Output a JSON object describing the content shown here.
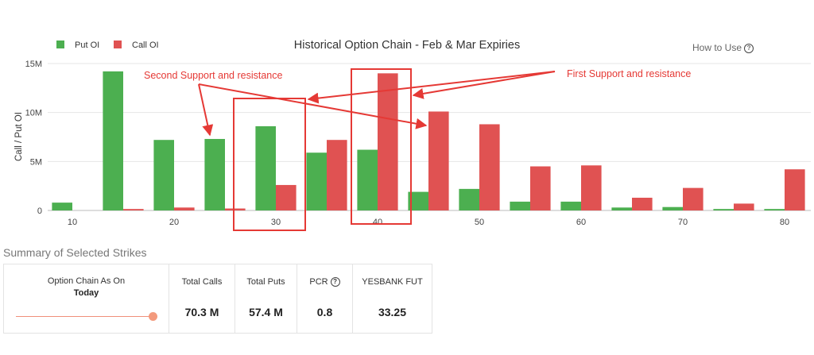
{
  "chart_data": {
    "type": "bar",
    "title": "Historical Option Chain - Feb & Mar Expiries",
    "ylabel": "Call / Put OI",
    "xlabel": "",
    "ylim": [
      0,
      15000000
    ],
    "yticks": [
      0,
      5000000,
      10000000,
      15000000
    ],
    "ytick_labels": [
      "0",
      "5M",
      "10M",
      "15M"
    ],
    "x_tick_values": [
      10,
      20,
      30,
      40,
      50,
      60,
      70,
      80
    ],
    "x_tick_labels": [
      "10",
      "20",
      "30",
      "40",
      "50",
      "60",
      "70",
      "80"
    ],
    "categories": [
      10,
      15,
      20,
      25,
      30,
      35,
      40,
      45,
      50,
      55,
      60,
      65,
      70,
      75,
      80
    ],
    "series": [
      {
        "name": "Put OI",
        "color": "#4caf50",
        "values": [
          800000,
          14200000,
          7200000,
          7300000,
          8600000,
          5900000,
          6200000,
          1900000,
          2200000,
          900000,
          900000,
          300000,
          350000,
          150000,
          150000
        ]
      },
      {
        "name": "Call OI",
        "color": "#e05252",
        "values": [
          0,
          150000,
          300000,
          200000,
          2600000,
          7200000,
          14000000,
          10100000,
          8800000,
          4500000,
          4600000,
          1300000,
          2300000,
          700000,
          4200000
        ]
      }
    ],
    "legend": "top-left",
    "annotations": [
      {
        "text": "Second Support and resistance",
        "color": "#e53935"
      },
      {
        "text": "First Support and resistance",
        "color": "#e53935"
      }
    ]
  },
  "how_to_use": "How to Use",
  "help_glyph": "?",
  "summary": {
    "title": "Summary of Selected Strikes",
    "chain_label": "Option Chain As On",
    "chain_value": "Today",
    "columns": [
      {
        "label": "Total Calls",
        "value": "70.3 M"
      },
      {
        "label": "Total Puts",
        "value": "57.4 M"
      },
      {
        "label": "PCR",
        "value": "0.8"
      },
      {
        "label": "YESBANK FUT",
        "value": "33.25"
      }
    ]
  }
}
